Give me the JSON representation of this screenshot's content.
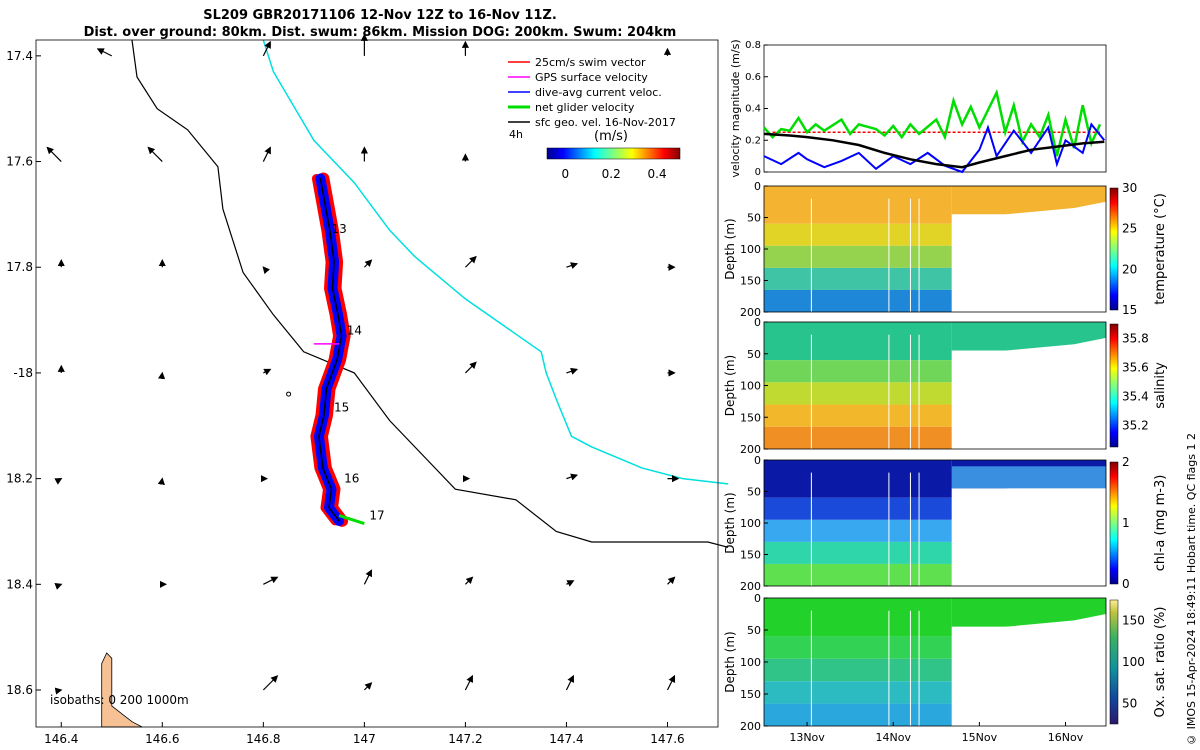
{
  "title_line1": "SL209 GBR20171106 12-Nov 12Z to 16-Nov 11Z.",
  "title_line2": "Dist. over ground: 80km. Dist. swum: 86km. Mission DOG: 200km. Swum: 204km",
  "footer": "© IMOS 15-Apr-2024 18:49:11 Hobart time. QC flags 1  2",
  "colors": {
    "swim": "#ff0000",
    "gps": "#ff00ff",
    "dive": "#0000ff",
    "glider": "#00dd00",
    "sfc": "#000000",
    "isobath": "#00e0e0",
    "coast": "#f5c195"
  },
  "chart_data": [
    {
      "type": "map",
      "name": "track-map",
      "xlim": [
        146.35,
        147.7
      ],
      "ylim": [
        -18.67,
        -17.37
      ],
      "xticks": [
        146.4,
        146.6,
        146.8,
        147,
        147.2,
        147.4,
        147.6
      ],
      "xtick_labels": [
        "146.4",
        "146.6",
        "146.8",
        "147",
        "147.2",
        "147.4",
        "147.6"
      ],
      "yticks": [
        -17.4,
        -17.6,
        -17.8,
        -18,
        -18.2,
        -18.4,
        -18.6
      ],
      "ytick_labels": [
        "17.4",
        "17.6",
        "17.8",
        "-18",
        "18.2",
        "18.4",
        "18.6"
      ],
      "legend": [
        "25cm/s swim vector",
        "GPS surface velocity",
        "dive-avg current veloc.",
        "net glider velocity",
        "sfc geo. vel. 16-Nov-2017"
      ],
      "legend_extra": "4h",
      "colorbar": {
        "label": "(m/s)",
        "ticks": [
          "0",
          "0.2",
          "0.4"
        ],
        "range": [
          -0.08,
          0.5
        ]
      },
      "isobaths_label": "isobaths: 0   200  1000m",
      "track": [
        [
          146.913,
          -17.632
        ],
        [
          146.922,
          -17.68
        ],
        [
          146.932,
          -17.732
        ],
        [
          146.94,
          -17.79
        ],
        [
          146.937,
          -17.84
        ],
        [
          146.948,
          -17.89
        ],
        [
          146.955,
          -17.93
        ],
        [
          146.946,
          -17.975
        ],
        [
          146.925,
          -18.03
        ],
        [
          146.92,
          -18.08
        ],
        [
          146.91,
          -18.12
        ],
        [
          146.918,
          -18.18
        ],
        [
          146.935,
          -18.22
        ],
        [
          146.93,
          -18.255
        ],
        [
          146.95,
          -18.28
        ]
      ],
      "day_labels": [
        {
          "label": "13",
          "lon": 146.935,
          "lat": -17.728
        },
        {
          "label": "14",
          "lon": 146.965,
          "lat": -17.92
        },
        {
          "label": "15",
          "lon": 146.94,
          "lat": -18.065
        },
        {
          "label": "16",
          "lon": 146.96,
          "lat": -18.2
        },
        {
          "label": "17",
          "lon": 147.01,
          "lat": -18.27
        }
      ],
      "isobath_200": [
        [
          146.54,
          -17.37
        ],
        [
          146.55,
          -17.44
        ],
        [
          146.59,
          -17.5
        ],
        [
          146.65,
          -17.54
        ],
        [
          146.71,
          -17.61
        ],
        [
          146.72,
          -17.69
        ],
        [
          146.74,
          -17.75
        ],
        [
          146.76,
          -17.81
        ],
        [
          146.82,
          -17.89
        ],
        [
          146.88,
          -17.96
        ],
        [
          146.98,
          -18.0
        ],
        [
          147.05,
          -18.09
        ],
        [
          147.12,
          -18.16
        ],
        [
          147.18,
          -18.22
        ],
        [
          147.3,
          -18.24
        ],
        [
          147.38,
          -18.3
        ],
        [
          147.45,
          -18.32
        ],
        [
          147.58,
          -18.32
        ],
        [
          147.68,
          -18.32
        ],
        [
          147.72,
          -18.33
        ]
      ],
      "isobath_1000": [
        [
          146.8,
          -17.37
        ],
        [
          146.82,
          -17.43
        ],
        [
          146.9,
          -17.56
        ],
        [
          146.98,
          -17.64
        ],
        [
          147.05,
          -17.73
        ],
        [
          147.1,
          -17.78
        ],
        [
          147.2,
          -17.86
        ],
        [
          147.35,
          -17.96
        ],
        [
          147.36,
          -18.0
        ],
        [
          147.38,
          -18.05
        ],
        [
          147.41,
          -18.12
        ],
        [
          147.45,
          -18.14
        ],
        [
          147.55,
          -18.18
        ],
        [
          147.63,
          -18.2
        ],
        [
          147.72,
          -18.21
        ]
      ],
      "coast": [
        [
          146.48,
          -18.67
        ],
        [
          146.48,
          -18.55
        ],
        [
          146.49,
          -18.53
        ],
        [
          146.5,
          -18.54
        ],
        [
          146.5,
          -18.63
        ],
        [
          146.54,
          -18.66
        ],
        [
          146.56,
          -18.67
        ]
      ],
      "current_vectors": [
        [
          146.5,
          -17.4,
          -0.02,
          0.01
        ],
        [
          146.8,
          -17.4,
          0.01,
          0.02
        ],
        [
          147.0,
          -17.4,
          0.0,
          0.03
        ],
        [
          147.2,
          -17.4,
          0.0,
          0.02
        ],
        [
          147.6,
          -17.4,
          0.0,
          0.01
        ],
        [
          146.4,
          -17.6,
          -0.02,
          0.02
        ],
        [
          146.6,
          -17.6,
          -0.02,
          0.02
        ],
        [
          146.8,
          -17.6,
          0.01,
          0.02
        ],
        [
          147.0,
          -17.6,
          0.0,
          0.02
        ],
        [
          147.2,
          -17.6,
          0.0,
          0.01
        ],
        [
          146.4,
          -17.8,
          0.0,
          0.01
        ],
        [
          146.6,
          -17.8,
          0.0,
          0.01
        ],
        [
          146.8,
          -17.8,
          0.0,
          0.0
        ],
        [
          147.0,
          -17.8,
          0.01,
          0.01
        ],
        [
          147.2,
          -17.8,
          0.015,
          0.015
        ],
        [
          147.4,
          -17.8,
          0.015,
          0.005
        ],
        [
          147.6,
          -17.8,
          0.01,
          0.0
        ],
        [
          146.4,
          -18.0,
          0.0,
          0.01
        ],
        [
          146.6,
          -18.0,
          0.0,
          0.0
        ],
        [
          146.8,
          -18.0,
          0.01,
          0.005
        ],
        [
          147.2,
          -18.0,
          0.015,
          0.015
        ],
        [
          147.4,
          -18.0,
          0.015,
          0.005
        ],
        [
          147.6,
          -18.0,
          0.01,
          0.0
        ],
        [
          146.4,
          -18.2,
          0.0,
          0.0
        ],
        [
          146.6,
          -18.2,
          0.0,
          0.0
        ],
        [
          146.8,
          -18.2,
          0.005,
          0.0
        ],
        [
          147.2,
          -18.2,
          0.005,
          0.0
        ],
        [
          147.4,
          -18.2,
          0.015,
          0.005
        ],
        [
          147.6,
          -18.2,
          0.015,
          0.0
        ],
        [
          146.4,
          -18.4,
          0.0,
          0.0
        ],
        [
          146.6,
          -18.4,
          0.005,
          0.0
        ],
        [
          146.8,
          -18.4,
          0.02,
          0.01
        ],
        [
          147.0,
          -18.4,
          0.01,
          0.02
        ],
        [
          147.2,
          -18.4,
          0.01,
          0.01
        ],
        [
          147.4,
          -18.4,
          0.01,
          0.005
        ],
        [
          147.6,
          -18.4,
          0.01,
          0.01
        ],
        [
          146.4,
          -18.6,
          0.0,
          0.0
        ],
        [
          146.8,
          -18.6,
          0.02,
          0.02
        ],
        [
          147.0,
          -18.6,
          0.01,
          0.01
        ],
        [
          147.2,
          -18.6,
          0.01,
          0.02
        ],
        [
          147.4,
          -18.6,
          0.01,
          0.02
        ],
        [
          147.6,
          -18.6,
          0.01,
          0.02
        ]
      ]
    },
    {
      "type": "line",
      "name": "velocity-panel",
      "ylabel": "velocity magnitude (m/s)",
      "ylim": [
        0,
        0.8
      ],
      "yticks": [
        0,
        0.2,
        0.4,
        0.6,
        0.8
      ],
      "ytick_labels": [
        "0",
        "0.2",
        "0.4",
        "0.6",
        "0.8"
      ],
      "xlim": [
        12.5,
        16.47
      ],
      "series": [
        {
          "name": "swim",
          "values": [
            [
              12.6,
              0.25
            ],
            [
              16.4,
              0.25
            ]
          ]
        },
        {
          "name": "net glider velocity",
          "values": [
            [
              12.5,
              0.28
            ],
            [
              12.6,
              0.22
            ],
            [
              12.7,
              0.27
            ],
            [
              12.8,
              0.26
            ],
            [
              12.9,
              0.34
            ],
            [
              13.0,
              0.25
            ],
            [
              13.1,
              0.3
            ],
            [
              13.2,
              0.26
            ],
            [
              13.4,
              0.33
            ],
            [
              13.5,
              0.24
            ],
            [
              13.6,
              0.3
            ],
            [
              13.8,
              0.27
            ],
            [
              13.9,
              0.23
            ],
            [
              14.0,
              0.29
            ],
            [
              14.1,
              0.22
            ],
            [
              14.2,
              0.3
            ],
            [
              14.3,
              0.24
            ],
            [
              14.5,
              0.33
            ],
            [
              14.6,
              0.22
            ],
            [
              14.7,
              0.45
            ],
            [
              14.8,
              0.3
            ],
            [
              14.9,
              0.41
            ],
            [
              15.0,
              0.28
            ],
            [
              15.2,
              0.5
            ],
            [
              15.3,
              0.25
            ],
            [
              15.4,
              0.42
            ],
            [
              15.5,
              0.19
            ],
            [
              15.6,
              0.3
            ],
            [
              15.7,
              0.22
            ],
            [
              15.8,
              0.36
            ],
            [
              15.9,
              0.1
            ],
            [
              16.0,
              0.33
            ],
            [
              16.1,
              0.15
            ],
            [
              16.2,
              0.42
            ],
            [
              16.3,
              0.18
            ],
            [
              16.4,
              0.3
            ]
          ]
        },
        {
          "name": "dive-avg current",
          "values": [
            [
              12.5,
              0.1
            ],
            [
              12.7,
              0.05
            ],
            [
              12.9,
              0.12
            ],
            [
              13.0,
              0.08
            ],
            [
              13.2,
              0.03
            ],
            [
              13.4,
              0.07
            ],
            [
              13.6,
              0.12
            ],
            [
              13.8,
              0.02
            ],
            [
              14.0,
              0.1
            ],
            [
              14.2,
              0.05
            ],
            [
              14.4,
              0.12
            ],
            [
              14.6,
              0.04
            ],
            [
              14.8,
              0.0
            ],
            [
              15.0,
              0.14
            ],
            [
              15.1,
              0.28
            ],
            [
              15.2,
              0.1
            ],
            [
              15.4,
              0.26
            ],
            [
              15.6,
              0.12
            ],
            [
              15.8,
              0.28
            ],
            [
              15.9,
              0.05
            ],
            [
              16.0,
              0.2
            ],
            [
              16.2,
              0.12
            ],
            [
              16.3,
              0.3
            ],
            [
              16.45,
              0.2
            ]
          ]
        },
        {
          "name": "sfc geo",
          "values": [
            [
              12.5,
              0.24
            ],
            [
              12.8,
              0.23
            ],
            [
              13.0,
              0.22
            ],
            [
              13.3,
              0.2
            ],
            [
              13.6,
              0.17
            ],
            [
              13.9,
              0.12
            ],
            [
              14.2,
              0.08
            ],
            [
              14.5,
              0.05
            ],
            [
              14.8,
              0.03
            ],
            [
              15.0,
              0.06
            ],
            [
              15.3,
              0.1
            ],
            [
              15.6,
              0.14
            ],
            [
              15.9,
              0.16
            ],
            [
              16.2,
              0.18
            ],
            [
              16.45,
              0.19
            ]
          ]
        }
      ]
    },
    {
      "type": "heatmap",
      "name": "temperature-section",
      "ylabel": "Depth (m)",
      "cbar_label": "temperature (°C)",
      "cbar_ticks": [
        "30",
        "25",
        "20",
        "15"
      ],
      "vrange": [
        15,
        30
      ],
      "yticks": [
        "0",
        "50",
        "100",
        "150",
        "200"
      ],
      "ylim": [
        0,
        200
      ]
    },
    {
      "type": "heatmap",
      "name": "salinity-section",
      "ylabel": "Depth (m)",
      "cbar_label": "salinity",
      "cbar_ticks": [
        "35.8",
        "35.6",
        "35.4",
        "35.2"
      ],
      "vrange": [
        35.05,
        35.9
      ],
      "yticks": [
        "0",
        "50",
        "100",
        "150",
        "200"
      ],
      "ylim": [
        0,
        200
      ]
    },
    {
      "type": "heatmap",
      "name": "chla-section",
      "ylabel": "Depth (m)",
      "cbar_label": "chl-a (mg m-3)",
      "cbar_ticks": [
        "2",
        "1",
        "0"
      ],
      "vrange": [
        0,
        2
      ],
      "yticks": [
        "0",
        "50",
        "100",
        "150",
        "200"
      ],
      "ylim": [
        0,
        200
      ]
    },
    {
      "type": "heatmap",
      "name": "oxygen-section",
      "ylabel": "Depth (m)",
      "cbar_label": "Ox. sat. ratio (%)",
      "cbar_ticks": [
        "150",
        "100",
        "50"
      ],
      "vrange": [
        25,
        175
      ],
      "yticks": [
        "0",
        "50",
        "100",
        "150",
        "200"
      ],
      "ylim": [
        0,
        200
      ],
      "xticks": [
        "13Nov",
        "14Nov",
        "15Nov",
        "16Nov"
      ]
    }
  ]
}
